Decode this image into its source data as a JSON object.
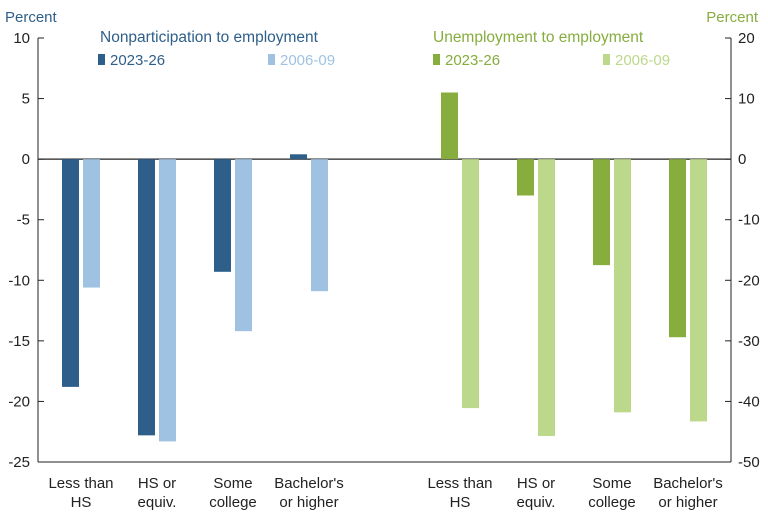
{
  "chart_data": {
    "type": "bar",
    "left_axis": {
      "unit_label": "Percent",
      "ylim": [
        -25,
        10
      ],
      "ticks": [
        "10",
        "5",
        "0",
        "-5",
        "-10",
        "-15",
        "-20",
        "-25"
      ],
      "color": "#2e5f8a"
    },
    "right_axis": {
      "unit_label": "Percent",
      "ylim": [
        -50,
        20
      ],
      "ticks": [
        "20",
        "10",
        "0",
        "-10",
        "-20",
        "-30",
        "-40",
        "-50"
      ],
      "color": "#86ad3e"
    },
    "panels": [
      {
        "title": "Nonparticipation to employment",
        "axis": "left",
        "title_color": "#2e5f8a",
        "categories": [
          {
            "lines": [
              "Less than",
              "HS"
            ]
          },
          {
            "lines": [
              "HS or",
              "equiv."
            ]
          },
          {
            "lines": [
              "Some",
              "college"
            ]
          },
          {
            "lines": [
              "Bachelor's",
              "or higher"
            ]
          }
        ],
        "series": [
          {
            "name": "2023-26",
            "color": "#2e5f8a",
            "values": [
              -18.8,
              -22.8,
              -9.3,
              0.4
            ]
          },
          {
            "name": "2006-09",
            "color": "#9fc2e2",
            "values": [
              -10.6,
              -23.3,
              -14.2,
              -10.9
            ]
          }
        ]
      },
      {
        "title": "Unemployment to employment",
        "axis": "right",
        "title_color": "#86ad3e",
        "categories": [
          {
            "lines": [
              "Less than",
              "HS"
            ]
          },
          {
            "lines": [
              "HS or",
              "equiv."
            ]
          },
          {
            "lines": [
              "Some",
              "college"
            ]
          },
          {
            "lines": [
              "Bachelor's",
              "or higher"
            ]
          }
        ],
        "series": [
          {
            "name": "2023-26",
            "color": "#86ad3e",
            "values": [
              11.0,
              -6.0,
              -17.5,
              -29.4
            ]
          },
          {
            "name": "2006-09",
            "color": "#bcd88a",
            "values": [
              -41.1,
              -45.7,
              -41.8,
              -43.3
            ]
          }
        ]
      }
    ],
    "grid": false,
    "legend_placement": "top, under each panel title"
  }
}
